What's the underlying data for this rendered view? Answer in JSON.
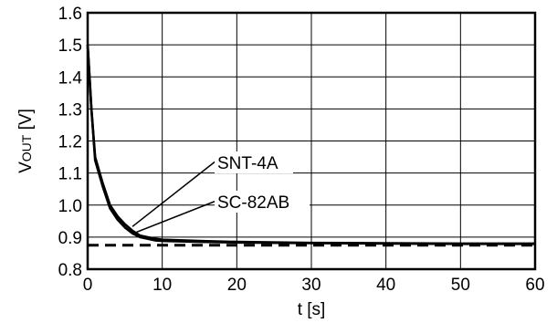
{
  "chart_data": {
    "type": "line",
    "xlabel": "t [s]",
    "ylabel": {
      "main": "V",
      "sub": "OUT",
      "unit": " [V]"
    },
    "xlim": [
      0,
      60
    ],
    "ylim": [
      0.8,
      1.6
    ],
    "x_ticks": [
      "0",
      "10",
      "20",
      "30",
      "40",
      "50",
      "60"
    ],
    "y_ticks": [
      "0.8",
      "0.9",
      "1.0",
      "1.1",
      "1.2",
      "1.3",
      "1.4",
      "1.5",
      "1.6"
    ],
    "grid": true,
    "series": [
      {
        "name": "SNT-4A",
        "style": "solid",
        "color": "#000000",
        "x": [
          0,
          0.5,
          1,
          2,
          3,
          4,
          5,
          6,
          7,
          8,
          9,
          10,
          15,
          20,
          30,
          40,
          50,
          60
        ],
        "y": [
          1.5,
          1.3,
          1.15,
          1.07,
          1.0,
          0.965,
          0.94,
          0.92,
          0.905,
          0.9,
          0.895,
          0.892,
          0.888,
          0.885,
          0.882,
          0.881,
          0.88,
          0.88
        ]
      },
      {
        "name": "SC-82AB",
        "style": "solid",
        "color": "#000000",
        "x": [
          0,
          0.5,
          1,
          2,
          3,
          4,
          5,
          6,
          7,
          8,
          9,
          10,
          15,
          20,
          30,
          40,
          50,
          60
        ],
        "y": [
          1.5,
          1.3,
          1.14,
          1.06,
          0.99,
          0.955,
          0.93,
          0.912,
          0.9,
          0.895,
          0.89,
          0.888,
          0.885,
          0.883,
          0.881,
          0.88,
          0.879,
          0.879
        ]
      },
      {
        "name": "",
        "style": "dashed",
        "color": "#000000",
        "x": [
          0,
          60
        ],
        "y": [
          0.875,
          0.875
        ]
      }
    ],
    "annotations": [
      {
        "text": "SNT-4A",
        "target_x": 6.0,
        "target_y": 0.933
      },
      {
        "text": "SC-82AB",
        "target_x": 6.5,
        "target_y": 0.915
      }
    ]
  }
}
